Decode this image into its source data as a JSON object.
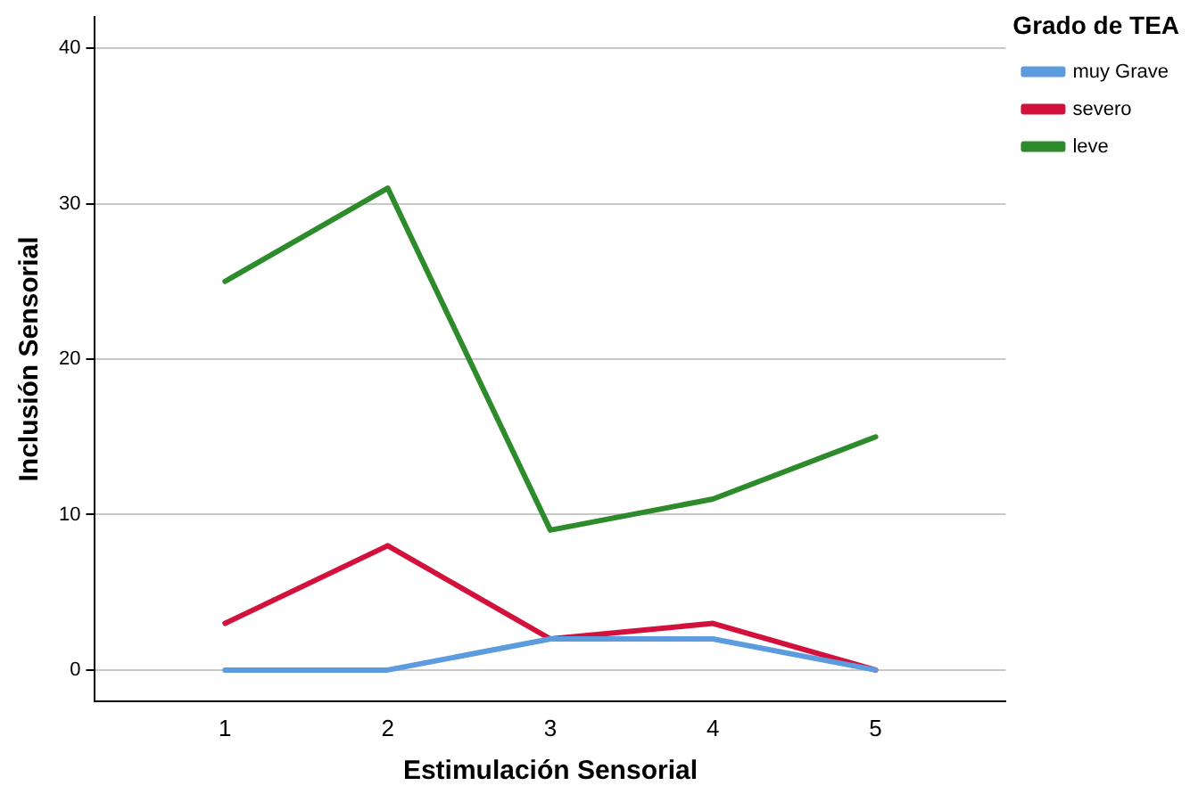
{
  "chart_data": {
    "type": "line",
    "xlabel": "Estimulación Sensorial",
    "ylabel": "Inclusión Sensorial",
    "legend_title": "Grado de TEA",
    "x": [
      1,
      2,
      3,
      4,
      5
    ],
    "xlim": [
      0.2,
      5.8
    ],
    "xticks": [
      1,
      2,
      3,
      4,
      5
    ],
    "ylim": [
      -2,
      42
    ],
    "yticks": [
      0,
      10,
      20,
      30,
      40
    ],
    "grid": "y",
    "legend": "top right",
    "marker": "none",
    "line_style": "solid",
    "series": [
      {
        "name": "muy Grave",
        "color": "#5b9bde",
        "values": [
          0,
          0,
          2,
          2,
          0
        ]
      },
      {
        "name": "severo",
        "color": "#d2123c",
        "values": [
          3,
          8,
          2,
          3,
          0
        ]
      },
      {
        "name": "leve",
        "color": "#2e8b2b",
        "values": [
          25,
          31,
          9,
          11,
          15
        ]
      }
    ]
  }
}
